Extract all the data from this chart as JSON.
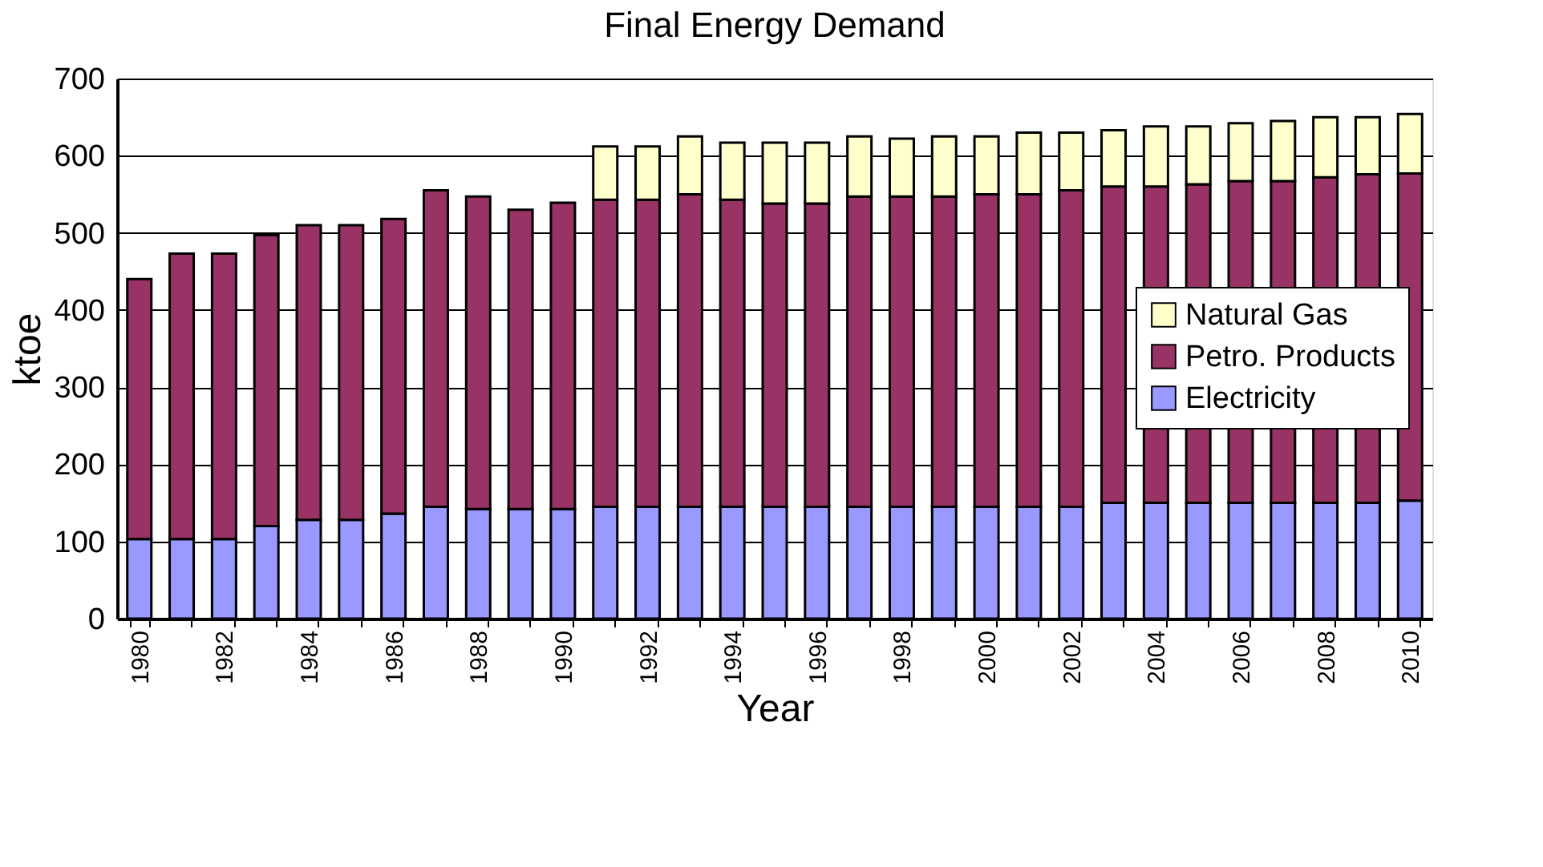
{
  "chart_data": {
    "type": "bar",
    "title": "Final Energy Demand",
    "xlabel": "Year",
    "ylabel": "ktoe",
    "categories": [
      "1980",
      null,
      "1982",
      null,
      "1984",
      null,
      "1986",
      null,
      "1988",
      null,
      "1990",
      null,
      "1992",
      null,
      "1994",
      null,
      "1996",
      null,
      "1998",
      null,
      "2000",
      null,
      "2002",
      null,
      "2004",
      null,
      "2006",
      null,
      "2008",
      null,
      "2010"
    ],
    "stacked": true,
    "series": [
      {
        "name": "Electricity",
        "color": "#9999ff",
        "values": [
          103,
          103,
          103,
          120,
          128,
          128,
          136,
          145,
          142,
          142,
          142,
          145,
          145,
          145,
          145,
          145,
          145,
          145,
          145,
          145,
          145,
          145,
          145,
          150,
          150,
          150,
          150,
          150,
          150,
          150,
          153
        ]
      },
      {
        "name": "Petro. Products",
        "color": "#993366",
        "values": [
          337,
          370,
          370,
          377,
          382,
          382,
          382,
          410,
          405,
          388,
          397,
          398,
          398,
          405,
          398,
          393,
          393,
          402,
          402,
          402,
          405,
          405,
          410,
          410,
          410,
          413,
          417,
          417,
          422,
          426,
          424
        ]
      },
      {
        "name": "Natural Gas",
        "color": "#ffffcc",
        "values": [
          null,
          null,
          null,
          null,
          null,
          null,
          null,
          null,
          null,
          null,
          null,
          69,
          69,
          75,
          74,
          79,
          79,
          78,
          75,
          78,
          75,
          80,
          75,
          73,
          78,
          75,
          75,
          78,
          78,
          74,
          77
        ]
      }
    ],
    "ylim": [
      0,
      700
    ],
    "yticks": [
      0,
      100,
      200,
      300,
      400,
      500,
      600,
      700
    ],
    "grid": "y",
    "legend": "right"
  }
}
